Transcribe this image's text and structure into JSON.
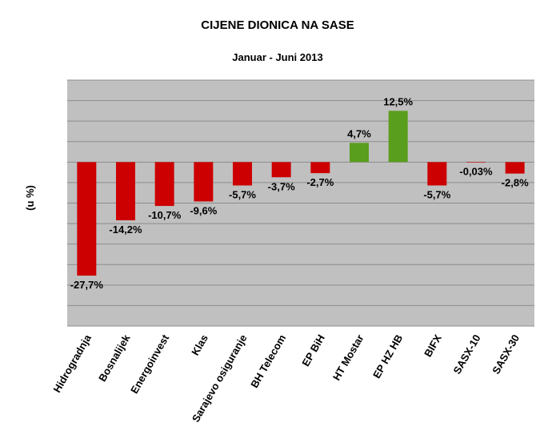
{
  "chart_data": {
    "type": "bar",
    "title": "CIJENE DIONICA NA SASE",
    "subtitle": "Januar - Juni 2013",
    "ylabel": "(u %)",
    "xlabel": "",
    "grid": true,
    "legend": "none",
    "ylim": [
      -40,
      20
    ],
    "categories": [
      "Hidrogradnja",
      "Bosnalijek",
      "Energoinvest",
      "Klas",
      "Sarajevo osiguranje",
      "BH Telecom",
      "EP BiH",
      "HT Mostar",
      "EP HZ HB",
      "BIFX",
      "SASX-10",
      "SASX-30"
    ],
    "values": [
      -27.7,
      -14.2,
      -10.7,
      -9.6,
      -5.7,
      -3.7,
      -2.7,
      4.7,
      12.5,
      -5.7,
      -0.03,
      -2.8
    ],
    "labels": [
      "-27,7%",
      "-14,2%",
      "-10,7%",
      "-9,6%",
      "-5,7%",
      "-3,7%",
      "-2,7%",
      "4,7%",
      "12,5%",
      "-5,7%",
      "-0,03%",
      "-2,8%"
    ],
    "colors": {
      "negative": "#CC0000",
      "positive": "#5A9E1E",
      "plot_background": "#C0C0C0",
      "gridline": "#8C8C8C"
    }
  }
}
